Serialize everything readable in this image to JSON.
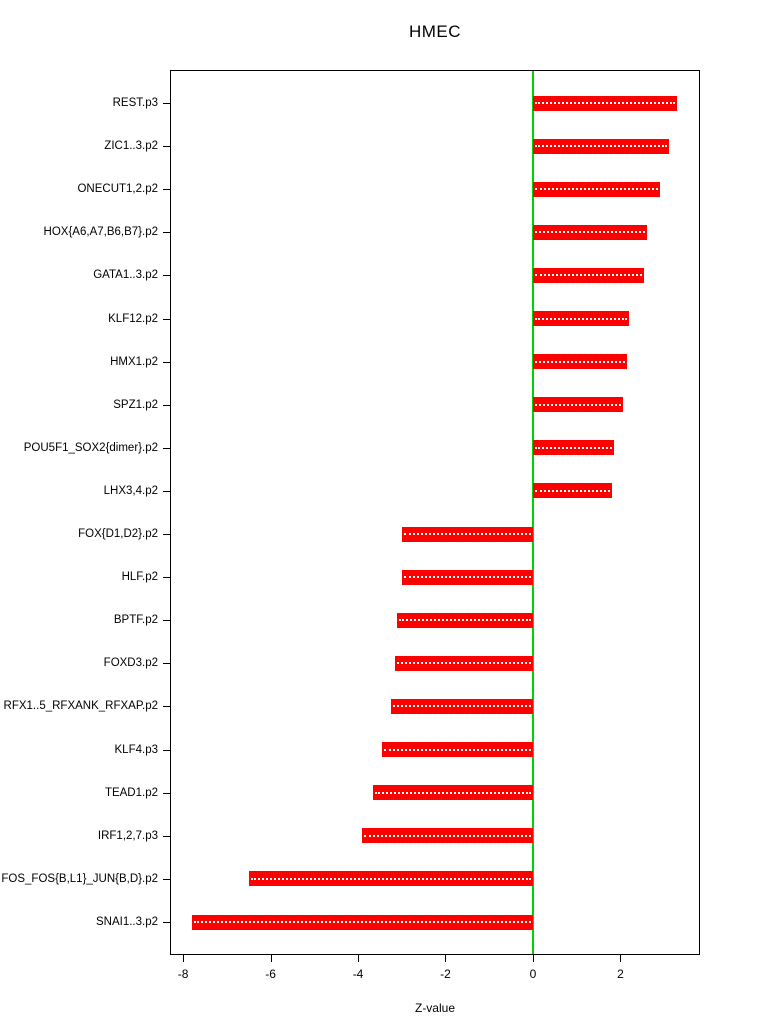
{
  "page": {
    "title": "HMEC"
  },
  "chart_data": {
    "type": "bar",
    "orientation": "horizontal",
    "title": "HMEC",
    "xlabel": "Z-value",
    "categories": [
      "REST.p3",
      "ZIC1..3.p2",
      "ONECUT1,2.p2",
      "HOX{A6,A7,B6,B7}.p2",
      "GATA1..3.p2",
      "KLF12.p2",
      "HMX1.p2",
      "SPZ1.p2",
      "POU5F1_SOX2{dimer}.p2",
      "LHX3,4.p2",
      "FOX{D1,D2}.p2",
      "HLF.p2",
      "BPTF.p2",
      "FOXD3.p2",
      "RFX1..5_RFXANK_RFXAP.p2",
      "KLF4.p3",
      "TEAD1.p2",
      "IRF1,2,7.p3",
      "FOS_FOS{B,L1}_JUN{B,D}.p2",
      "SNAI1..3.p2"
    ],
    "values": [
      3.3,
      3.1,
      2.9,
      2.6,
      2.55,
      2.2,
      2.15,
      2.05,
      1.85,
      1.8,
      -3.0,
      -3.0,
      -3.1,
      -3.15,
      -3.25,
      -3.45,
      -3.65,
      -3.9,
      -6.5,
      -7.8
    ],
    "xlim": [
      -8.3,
      3.82
    ],
    "x_ticks": [
      -8,
      -6,
      -4,
      -2,
      0,
      2
    ],
    "bar_color": "#ff0000",
    "bar_dash_color": "#ffffff",
    "zero_line_color": "#00d400",
    "axis_color": "#000000",
    "grid": false,
    "legend": "none"
  }
}
